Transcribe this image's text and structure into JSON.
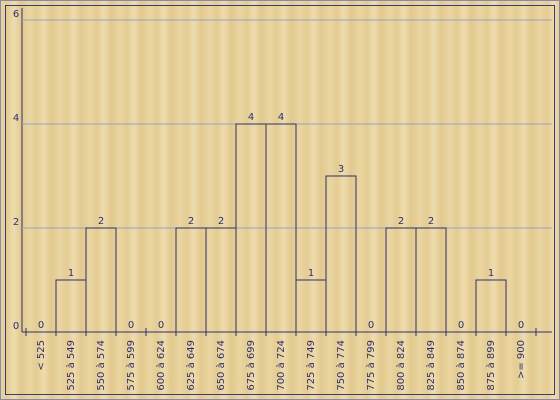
{
  "chart_data": {
    "type": "bar",
    "categories": [
      "< 525",
      "525 à 549",
      "550 à 574",
      "575 à 599",
      "600 à 624",
      "625 à 649",
      "650 à 674",
      "675 à 699",
      "700 à 724",
      "725 à 749",
      "750 à 774",
      "775 à 799",
      "800 à 824",
      "825 à 849",
      "850 à 874",
      "875 à 899",
      ">= 900"
    ],
    "values": [
      0,
      1,
      2,
      0,
      0,
      2,
      2,
      4,
      4,
      1,
      3,
      0,
      2,
      2,
      0,
      1,
      0
    ],
    "color": "#2e2e6e",
    "ylim": [
      0,
      6
    ],
    "yticks": [
      0,
      2,
      4,
      6
    ],
    "grid": true
  }
}
